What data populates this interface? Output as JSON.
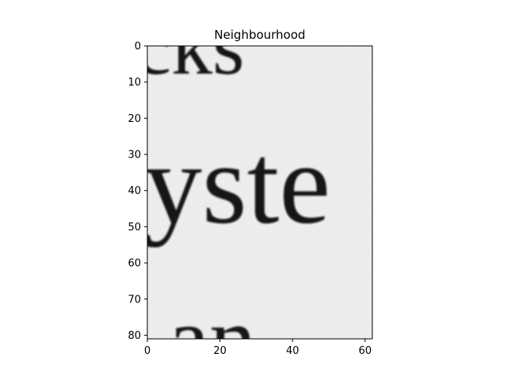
{
  "chart_data": {
    "type": "heatmap",
    "title": "Neighbourhood",
    "xlabel": "",
    "ylabel": "",
    "colormap": "grayscale",
    "xlim": [
      0,
      62
    ],
    "ylim": [
      81,
      0
    ],
    "x_ticks": [
      0,
      20,
      40,
      60
    ],
    "y_ticks": [
      0,
      10,
      20,
      30,
      40,
      50,
      60,
      70,
      80
    ],
    "x_tick_labels": [
      "0",
      "20",
      "40",
      "60"
    ],
    "y_tick_labels": [
      "0",
      "10",
      "20",
      "30",
      "40",
      "50",
      "60",
      "70",
      "80"
    ],
    "grid": false,
    "image_content": {
      "description": "scanned printed serif text crop",
      "text_fragments": [
        "cks",
        "yste",
        "an"
      ],
      "background_color": "#efefef",
      "ink_color": "#141414"
    }
  }
}
